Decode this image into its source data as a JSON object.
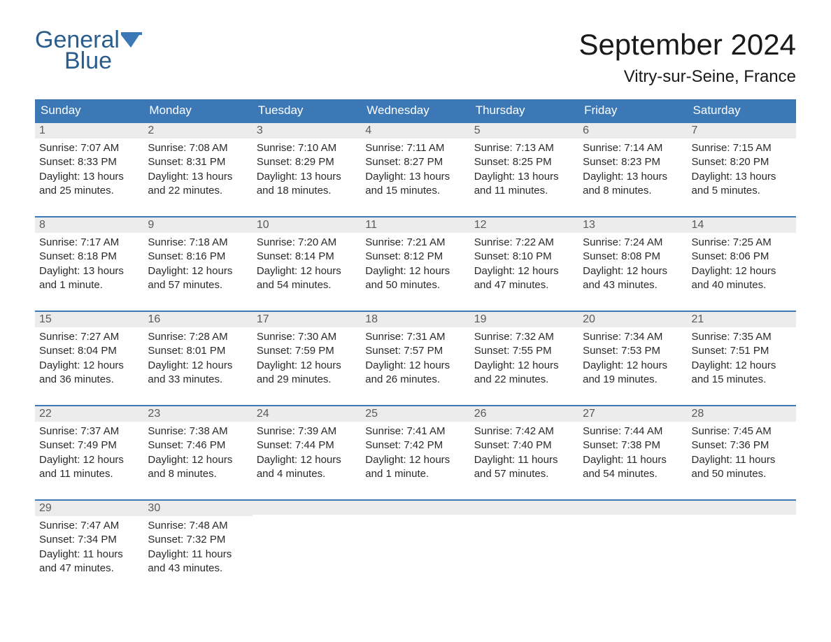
{
  "logo": {
    "line1": "General",
    "line2": "Blue"
  },
  "title": {
    "month": "September 2024",
    "location": "Vitry-sur-Seine, France"
  },
  "colors": {
    "header_bg": "#3b78b5",
    "header_text": "#ffffff",
    "strip_bg": "#ececec",
    "strip_border": "#3b78b5",
    "body_text": "#2a2a2a",
    "logo_color": "#2b5d8c",
    "page_bg": "#ffffff"
  },
  "typography": {
    "month_title_fontsize": 42,
    "location_fontsize": 24,
    "dow_fontsize": 17,
    "daynum_fontsize": 16,
    "body_fontsize": 15
  },
  "layout": {
    "columns": 7,
    "rows": 5
  },
  "days_of_week": [
    "Sunday",
    "Monday",
    "Tuesday",
    "Wednesday",
    "Thursday",
    "Friday",
    "Saturday"
  ],
  "weeks": [
    [
      {
        "n": "1",
        "sunrise": "Sunrise: 7:07 AM",
        "sunset": "Sunset: 8:33 PM",
        "dl1": "Daylight: 13 hours",
        "dl2": "and 25 minutes."
      },
      {
        "n": "2",
        "sunrise": "Sunrise: 7:08 AM",
        "sunset": "Sunset: 8:31 PM",
        "dl1": "Daylight: 13 hours",
        "dl2": "and 22 minutes."
      },
      {
        "n": "3",
        "sunrise": "Sunrise: 7:10 AM",
        "sunset": "Sunset: 8:29 PM",
        "dl1": "Daylight: 13 hours",
        "dl2": "and 18 minutes."
      },
      {
        "n": "4",
        "sunrise": "Sunrise: 7:11 AM",
        "sunset": "Sunset: 8:27 PM",
        "dl1": "Daylight: 13 hours",
        "dl2": "and 15 minutes."
      },
      {
        "n": "5",
        "sunrise": "Sunrise: 7:13 AM",
        "sunset": "Sunset: 8:25 PM",
        "dl1": "Daylight: 13 hours",
        "dl2": "and 11 minutes."
      },
      {
        "n": "6",
        "sunrise": "Sunrise: 7:14 AM",
        "sunset": "Sunset: 8:23 PM",
        "dl1": "Daylight: 13 hours",
        "dl2": "and 8 minutes."
      },
      {
        "n": "7",
        "sunrise": "Sunrise: 7:15 AM",
        "sunset": "Sunset: 8:20 PM",
        "dl1": "Daylight: 13 hours",
        "dl2": "and 5 minutes."
      }
    ],
    [
      {
        "n": "8",
        "sunrise": "Sunrise: 7:17 AM",
        "sunset": "Sunset: 8:18 PM",
        "dl1": "Daylight: 13 hours",
        "dl2": "and 1 minute."
      },
      {
        "n": "9",
        "sunrise": "Sunrise: 7:18 AM",
        "sunset": "Sunset: 8:16 PM",
        "dl1": "Daylight: 12 hours",
        "dl2": "and 57 minutes."
      },
      {
        "n": "10",
        "sunrise": "Sunrise: 7:20 AM",
        "sunset": "Sunset: 8:14 PM",
        "dl1": "Daylight: 12 hours",
        "dl2": "and 54 minutes."
      },
      {
        "n": "11",
        "sunrise": "Sunrise: 7:21 AM",
        "sunset": "Sunset: 8:12 PM",
        "dl1": "Daylight: 12 hours",
        "dl2": "and 50 minutes."
      },
      {
        "n": "12",
        "sunrise": "Sunrise: 7:22 AM",
        "sunset": "Sunset: 8:10 PM",
        "dl1": "Daylight: 12 hours",
        "dl2": "and 47 minutes."
      },
      {
        "n": "13",
        "sunrise": "Sunrise: 7:24 AM",
        "sunset": "Sunset: 8:08 PM",
        "dl1": "Daylight: 12 hours",
        "dl2": "and 43 minutes."
      },
      {
        "n": "14",
        "sunrise": "Sunrise: 7:25 AM",
        "sunset": "Sunset: 8:06 PM",
        "dl1": "Daylight: 12 hours",
        "dl2": "and 40 minutes."
      }
    ],
    [
      {
        "n": "15",
        "sunrise": "Sunrise: 7:27 AM",
        "sunset": "Sunset: 8:04 PM",
        "dl1": "Daylight: 12 hours",
        "dl2": "and 36 minutes."
      },
      {
        "n": "16",
        "sunrise": "Sunrise: 7:28 AM",
        "sunset": "Sunset: 8:01 PM",
        "dl1": "Daylight: 12 hours",
        "dl2": "and 33 minutes."
      },
      {
        "n": "17",
        "sunrise": "Sunrise: 7:30 AM",
        "sunset": "Sunset: 7:59 PM",
        "dl1": "Daylight: 12 hours",
        "dl2": "and 29 minutes."
      },
      {
        "n": "18",
        "sunrise": "Sunrise: 7:31 AM",
        "sunset": "Sunset: 7:57 PM",
        "dl1": "Daylight: 12 hours",
        "dl2": "and 26 minutes."
      },
      {
        "n": "19",
        "sunrise": "Sunrise: 7:32 AM",
        "sunset": "Sunset: 7:55 PM",
        "dl1": "Daylight: 12 hours",
        "dl2": "and 22 minutes."
      },
      {
        "n": "20",
        "sunrise": "Sunrise: 7:34 AM",
        "sunset": "Sunset: 7:53 PM",
        "dl1": "Daylight: 12 hours",
        "dl2": "and 19 minutes."
      },
      {
        "n": "21",
        "sunrise": "Sunrise: 7:35 AM",
        "sunset": "Sunset: 7:51 PM",
        "dl1": "Daylight: 12 hours",
        "dl2": "and 15 minutes."
      }
    ],
    [
      {
        "n": "22",
        "sunrise": "Sunrise: 7:37 AM",
        "sunset": "Sunset: 7:49 PM",
        "dl1": "Daylight: 12 hours",
        "dl2": "and 11 minutes."
      },
      {
        "n": "23",
        "sunrise": "Sunrise: 7:38 AM",
        "sunset": "Sunset: 7:46 PM",
        "dl1": "Daylight: 12 hours",
        "dl2": "and 8 minutes."
      },
      {
        "n": "24",
        "sunrise": "Sunrise: 7:39 AM",
        "sunset": "Sunset: 7:44 PM",
        "dl1": "Daylight: 12 hours",
        "dl2": "and 4 minutes."
      },
      {
        "n": "25",
        "sunrise": "Sunrise: 7:41 AM",
        "sunset": "Sunset: 7:42 PM",
        "dl1": "Daylight: 12 hours",
        "dl2": "and 1 minute."
      },
      {
        "n": "26",
        "sunrise": "Sunrise: 7:42 AM",
        "sunset": "Sunset: 7:40 PM",
        "dl1": "Daylight: 11 hours",
        "dl2": "and 57 minutes."
      },
      {
        "n": "27",
        "sunrise": "Sunrise: 7:44 AM",
        "sunset": "Sunset: 7:38 PM",
        "dl1": "Daylight: 11 hours",
        "dl2": "and 54 minutes."
      },
      {
        "n": "28",
        "sunrise": "Sunrise: 7:45 AM",
        "sunset": "Sunset: 7:36 PM",
        "dl1": "Daylight: 11 hours",
        "dl2": "and 50 minutes."
      }
    ],
    [
      {
        "n": "29",
        "sunrise": "Sunrise: 7:47 AM",
        "sunset": "Sunset: 7:34 PM",
        "dl1": "Daylight: 11 hours",
        "dl2": "and 47 minutes."
      },
      {
        "n": "30",
        "sunrise": "Sunrise: 7:48 AM",
        "sunset": "Sunset: 7:32 PM",
        "dl1": "Daylight: 11 hours",
        "dl2": "and 43 minutes."
      },
      null,
      null,
      null,
      null,
      null
    ]
  ]
}
